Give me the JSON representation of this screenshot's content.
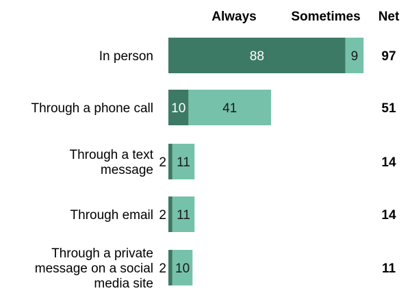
{
  "chart_data": {
    "type": "bar",
    "stacked": true,
    "orientation": "horizontal",
    "column_headers": {
      "always": "Always",
      "sometimes": "Sometimes",
      "net": "Net"
    },
    "categories": [
      [
        "In person"
      ],
      [
        "Through a phone call"
      ],
      [
        "Through a text",
        "message"
      ],
      [
        "Through email"
      ],
      [
        "Through a private",
        "message on a social",
        "media site"
      ]
    ],
    "series": [
      {
        "name": "Always",
        "values": [
          88,
          10,
          2,
          2,
          2
        ],
        "color": "#3d7a66"
      },
      {
        "name": "Sometimes",
        "values": [
          9,
          41,
          11,
          11,
          10
        ],
        "color": "#76c1aa"
      }
    ],
    "net": [
      97,
      51,
      14,
      14,
      11
    ],
    "xlim": [
      0,
      100
    ]
  }
}
